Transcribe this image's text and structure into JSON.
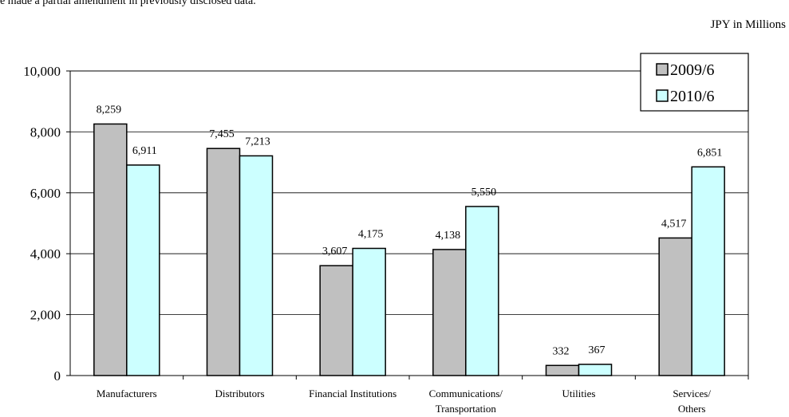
{
  "note": "e made a partial amendment in previously disclosed data.",
  "unit_label": "JPY in Millions",
  "chart_data": {
    "type": "bar",
    "categories": [
      "Manufacturers",
      "Distributors",
      "Financial Institutions",
      "Communications/\nTransportation",
      "Utilities",
      "Services/\nOthers"
    ],
    "series": [
      {
        "name": "2009/6",
        "values": [
          8259,
          7455,
          3607,
          4138,
          332,
          4517
        ],
        "labels": [
          "8,259",
          "7,455",
          "3,607",
          "4,138",
          "332",
          "4,517"
        ],
        "color": "#c0c0c0"
      },
      {
        "name": "2010/6",
        "values": [
          6911,
          7213,
          4175,
          5550,
          367,
          6851
        ],
        "labels": [
          "6,911",
          "7,213",
          "4,175",
          "5,550",
          "367",
          "6,851"
        ],
        "color": "#ccffff"
      }
    ],
    "yticks": [
      "0",
      "2,000",
      "4,000",
      "6,000",
      "8,000",
      "10,000"
    ],
    "ylim": [
      0,
      10000
    ],
    "grid": true,
    "legend_position": "top-right"
  }
}
